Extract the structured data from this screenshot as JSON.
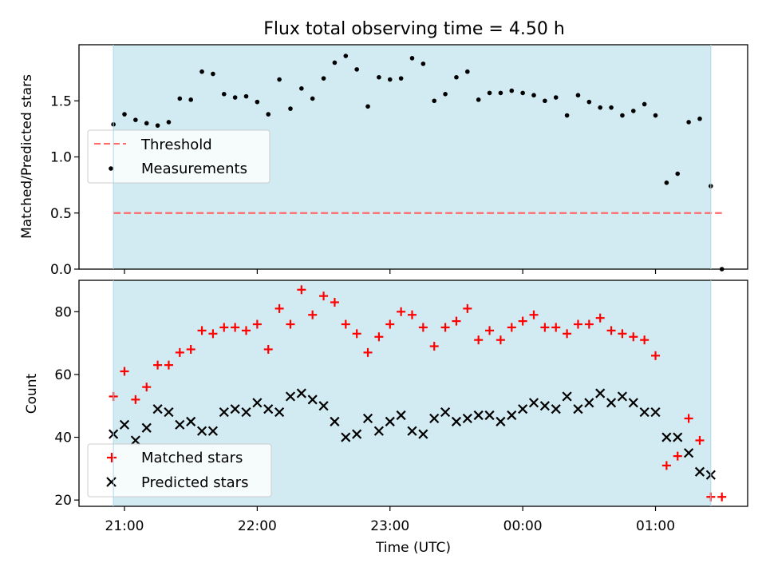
{
  "title": "Flux total observing time = 4.50 h",
  "colors": {
    "band": "#add8e6",
    "threshold": "#ff6b6b",
    "measurements": "#000000",
    "matched": "#ff0000",
    "predicted": "#000000",
    "axes": "#000000"
  },
  "chart_data": [
    {
      "type": "scatter",
      "ylabel": "Matched/Predicted stars",
      "ylim": [
        0,
        2.0
      ],
      "yticks": [
        "0.0",
        "0.5",
        "1.0",
        "1.5"
      ],
      "ytick_values": [
        0,
        0.5,
        1.0,
        1.5
      ],
      "observing_window_minutes": [
        -5,
        265
      ],
      "threshold": {
        "name": "Threshold",
        "value": 0.5,
        "x_minutes": [
          -5,
          270
        ]
      },
      "legend": {
        "placement": "center-left",
        "entries": [
          "Threshold",
          "Measurements"
        ]
      },
      "series": [
        {
          "name": "Measurements",
          "x_minutes": [
            -5,
            0,
            5,
            10,
            15,
            20,
            25,
            30,
            35,
            40,
            45,
            50,
            55,
            60,
            65,
            70,
            75,
            80,
            85,
            90,
            95,
            100,
            105,
            110,
            115,
            120,
            125,
            130,
            135,
            140,
            145,
            150,
            155,
            160,
            165,
            170,
            175,
            180,
            185,
            190,
            195,
            200,
            205,
            210,
            215,
            220,
            225,
            230,
            235,
            240,
            245,
            250,
            255,
            260,
            265,
            270
          ],
          "values": [
            1.29,
            1.38,
            1.33,
            1.3,
            1.28,
            1.31,
            1.52,
            1.51,
            1.76,
            1.74,
            1.56,
            1.53,
            1.54,
            1.49,
            1.38,
            1.69,
            1.43,
            1.61,
            1.52,
            1.7,
            1.84,
            1.9,
            1.78,
            1.45,
            1.71,
            1.69,
            1.7,
            1.88,
            1.83,
            1.5,
            1.56,
            1.71,
            1.76,
            1.51,
            1.57,
            1.57,
            1.59,
            1.57,
            1.55,
            1.5,
            1.53,
            1.37,
            1.55,
            1.49,
            1.44,
            1.44,
            1.37,
            1.41,
            1.47,
            1.37,
            0.77,
            0.85,
            1.31,
            1.34,
            0.74,
            0.0
          ]
        }
      ]
    },
    {
      "type": "scatter",
      "ylabel": "Count",
      "xlabel": "Time (UTC)",
      "ylim": [
        18,
        90
      ],
      "yticks": [
        "20",
        "40",
        "60",
        "80"
      ],
      "ytick_values": [
        20,
        40,
        60,
        80
      ],
      "x_tick_labels": [
        "21:00",
        "22:00",
        "23:00",
        "00:00",
        "01:00"
      ],
      "x_tick_minutes": [
        0,
        60,
        120,
        180,
        240
      ],
      "observing_window_minutes": [
        -5,
        265
      ],
      "legend": {
        "placement": "bottom-left",
        "entries": [
          "Matched stars",
          "Predicted stars"
        ]
      },
      "series": [
        {
          "name": "Matched stars",
          "marker": "plus",
          "x_minutes": [
            -5,
            0,
            5,
            10,
            15,
            20,
            25,
            30,
            35,
            40,
            45,
            50,
            55,
            60,
            65,
            70,
            75,
            80,
            85,
            90,
            95,
            100,
            105,
            110,
            115,
            120,
            125,
            130,
            135,
            140,
            145,
            150,
            155,
            160,
            165,
            170,
            175,
            180,
            185,
            190,
            195,
            200,
            205,
            210,
            215,
            220,
            225,
            230,
            235,
            240,
            245,
            250,
            255,
            260,
            265,
            270
          ],
          "values": [
            53,
            61,
            52,
            56,
            63,
            63,
            67,
            68,
            74,
            73,
            75,
            75,
            74,
            76,
            68,
            81,
            76,
            87,
            79,
            85,
            83,
            76,
            73,
            67,
            72,
            76,
            80,
            79,
            75,
            69,
            75,
            77,
            81,
            71,
            74,
            71,
            75,
            77,
            79,
            75,
            75,
            73,
            76,
            76,
            78,
            74,
            73,
            72,
            71,
            66,
            31,
            34,
            46,
            39,
            21,
            21
          ]
        },
        {
          "name": "Predicted stars",
          "marker": "x",
          "x_minutes": [
            -5,
            0,
            5,
            10,
            15,
            20,
            25,
            30,
            35,
            40,
            45,
            50,
            55,
            60,
            65,
            70,
            75,
            80,
            85,
            90,
            95,
            100,
            105,
            110,
            115,
            120,
            125,
            130,
            135,
            140,
            145,
            150,
            155,
            160,
            165,
            170,
            175,
            180,
            185,
            190,
            195,
            200,
            205,
            210,
            215,
            220,
            225,
            230,
            235,
            240,
            245,
            250,
            255,
            260,
            265
          ],
          "values": [
            41,
            44,
            39,
            43,
            49,
            48,
            44,
            45,
            42,
            42,
            48,
            49,
            48,
            51,
            49,
            48,
            53,
            54,
            52,
            50,
            45,
            40,
            41,
            46,
            42,
            45,
            47,
            42,
            41,
            46,
            48,
            45,
            46,
            47,
            47,
            45,
            47,
            49,
            51,
            50,
            49,
            53,
            49,
            51,
            54,
            51,
            53,
            51,
            48,
            48,
            40,
            40,
            35,
            29,
            28
          ]
        }
      ]
    }
  ]
}
